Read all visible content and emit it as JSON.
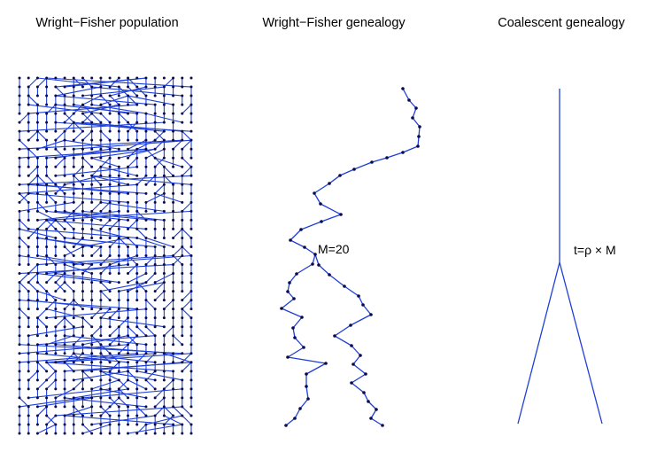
{
  "colors": {
    "line": "#1f3fd6",
    "dot": "#0a0a4a",
    "text": "#000000",
    "background": "#ffffff"
  },
  "panels": [
    {
      "title": "Wright−Fisher population"
    },
    {
      "title": "Wright−Fisher genealogy",
      "annotation": "M=20"
    },
    {
      "title": "Coalescent genealogy",
      "annotation": "t=ρ × M"
    }
  ]
}
